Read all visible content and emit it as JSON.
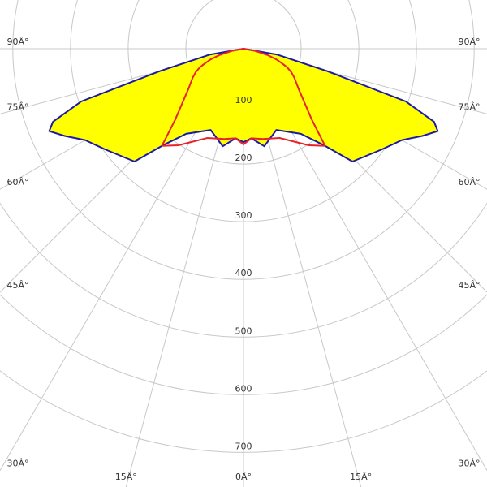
{
  "chart_data": {
    "type": "polar",
    "angles": [
      -90,
      -80,
      -75,
      -72,
      -69,
      -67,
      -64,
      -60,
      -54,
      -44,
      -40,
      -34,
      -22,
      -12,
      -5,
      0,
      5,
      12,
      22,
      34,
      40,
      44,
      54,
      60,
      64,
      67,
      69,
      72,
      75,
      80,
      90
    ],
    "series": [
      {
        "color": "#1a1aa6",
        "fill": "#ffff00",
        "values": [
          0,
          60,
          150,
          296,
          354,
          366,
          345,
          317,
          297,
          272,
          220,
          178,
          152,
          173,
          156,
          162,
          156,
          173,
          152,
          178,
          220,
          272,
          297,
          317,
          345,
          366,
          354,
          296,
          150,
          60,
          0
        ]
      },
      {
        "color": "#e8222a",
        "values": [
          0,
          20,
          44,
          60,
          72,
          82,
          92,
          102,
          118,
          170,
          220,
          202,
          167,
          160,
          156,
          166,
          156,
          160,
          167,
          202,
          220,
          170,
          118,
          102,
          92,
          82,
          72,
          60,
          44,
          20,
          0
        ]
      }
    ],
    "rlim": [
      0,
      760
    ],
    "rticks": [
      100,
      200,
      300,
      400,
      500,
      600,
      700
    ],
    "angle_ticks": [
      {
        "value": -90,
        "label": "90Â°"
      },
      {
        "value": -75,
        "label": "75Â°"
      },
      {
        "value": -60,
        "label": "60Â°"
      },
      {
        "value": -45,
        "label": "45Â°"
      },
      {
        "value": -30,
        "label": "30Â°"
      },
      {
        "value": -15,
        "label": "15Â°"
      },
      {
        "value": 0,
        "label": "0Â°"
      },
      {
        "value": 15,
        "label": "15Â°"
      },
      {
        "value": 30,
        "label": "30Â°"
      },
      {
        "value": 45,
        "label": "45Â°"
      },
      {
        "value": 60,
        "label": "60Â°"
      },
      {
        "value": 75,
        "label": "75Â°"
      },
      {
        "value": 90,
        "label": "90Â°"
      }
    ],
    "grid": true
  }
}
